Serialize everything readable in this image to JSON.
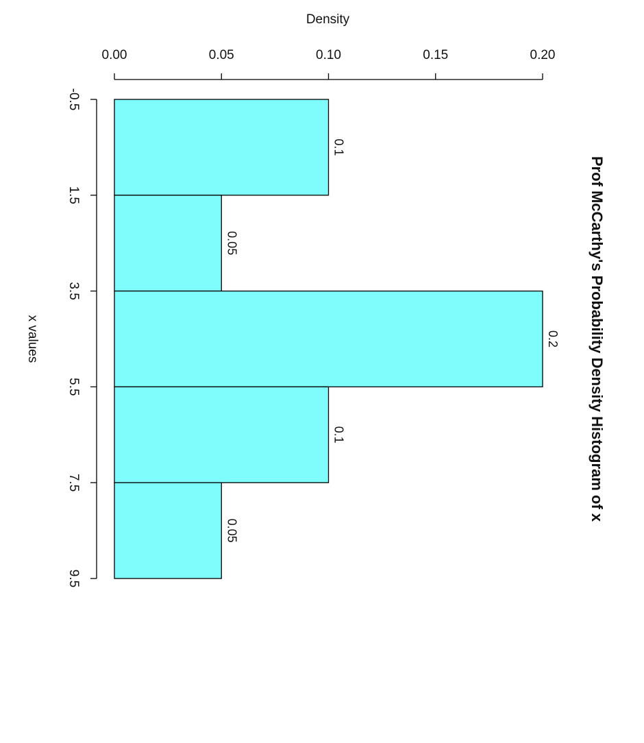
{
  "chart_data": {
    "type": "bar",
    "orientation": "horizontal-rotated",
    "title": "Prof McCarthy's Probability Density Histogram of x",
    "xlabel": "x values",
    "ylabel": "Density",
    "bins": [
      {
        "from": -0.5,
        "to": 1.5,
        "density": 0.1
      },
      {
        "from": 1.5,
        "to": 3.5,
        "density": 0.05
      },
      {
        "from": 3.5,
        "to": 5.5,
        "density": 0.2
      },
      {
        "from": 5.5,
        "to": 7.5,
        "density": 0.1
      },
      {
        "from": 7.5,
        "to": 9.5,
        "density": 0.05
      }
    ],
    "bar_labels": [
      "0.1",
      "0.05",
      "0.2",
      "0.1",
      "0.05"
    ],
    "x_ticks": [
      "-0.5",
      "1.5",
      "3.5",
      "5.5",
      "7.5",
      "9.5"
    ],
    "x_tick_values": [
      -0.5,
      1.5,
      3.5,
      5.5,
      7.5,
      9.5
    ],
    "y_ticks": [
      "0.00",
      "0.05",
      "0.10",
      "0.15",
      "0.20"
    ],
    "y_tick_values": [
      0,
      0.05,
      0.1,
      0.15,
      0.2
    ],
    "xlim": [
      -0.5,
      9.5
    ],
    "ylim": [
      0,
      0.2
    ],
    "bar_color": "#7ffcfc",
    "bar_border_color": "#000000",
    "grid": false
  }
}
